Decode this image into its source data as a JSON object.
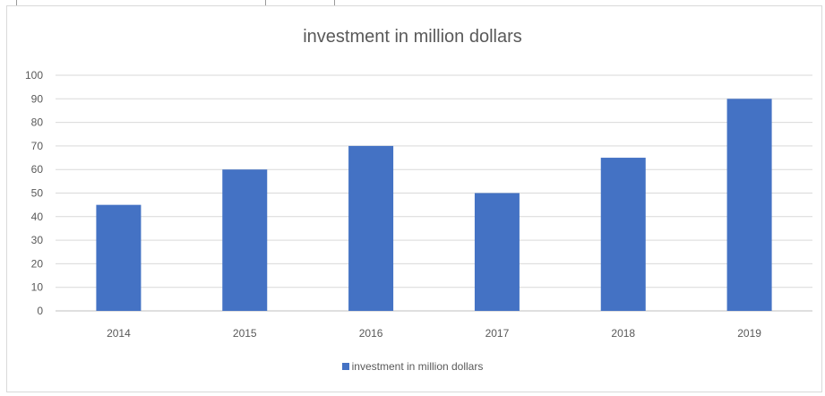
{
  "chart_data": {
    "type": "bar",
    "title": "investment in million dollars",
    "categories": [
      "2014",
      "2015",
      "2016",
      "2017",
      "2018",
      "2019"
    ],
    "series": [
      {
        "name": "investment in million dollars",
        "values": [
          45,
          60,
          70,
          50,
          65,
          90
        ],
        "color": "#4472c4"
      }
    ],
    "ylim": [
      0,
      100
    ],
    "yticks": [
      0,
      10,
      20,
      30,
      40,
      50,
      60,
      70,
      80,
      90,
      100
    ],
    "grid": true,
    "legend_position": "bottom",
    "xlabel": "",
    "ylabel": ""
  }
}
